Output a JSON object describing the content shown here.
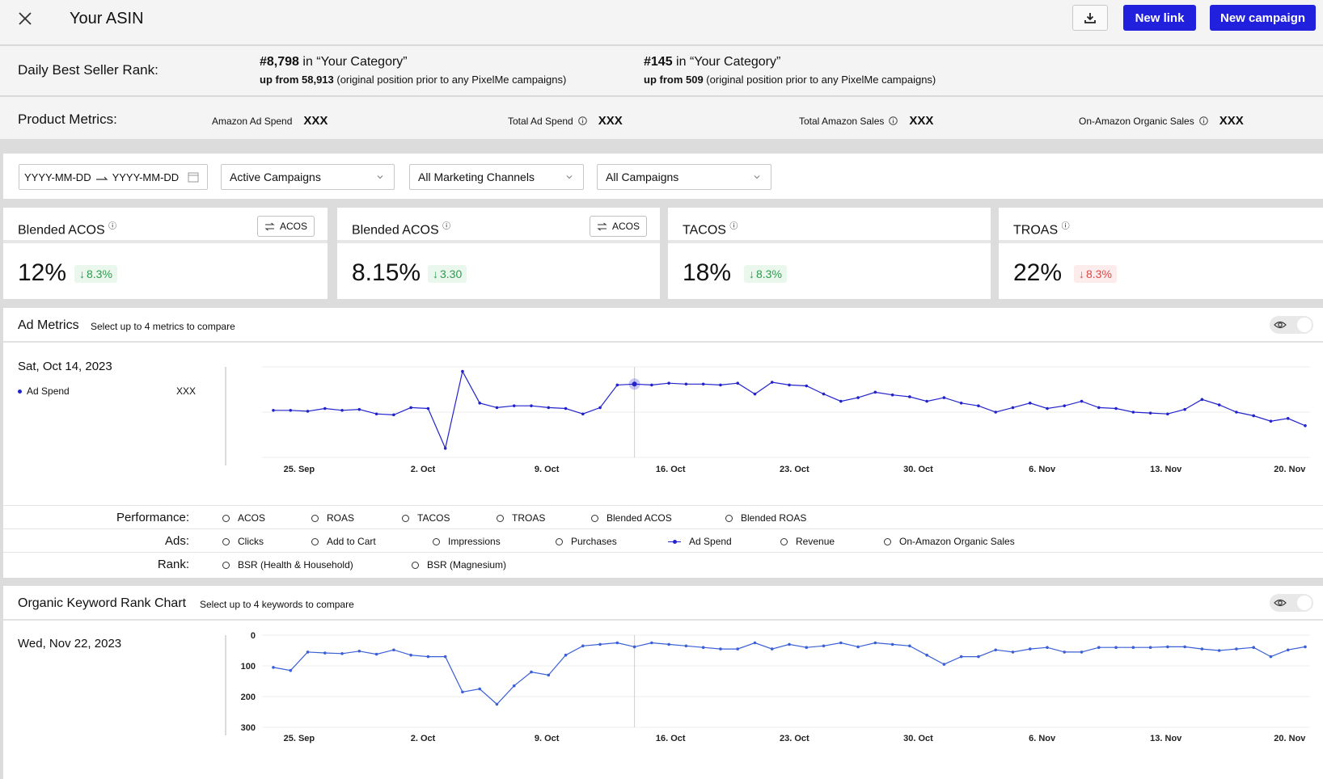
{
  "header": {
    "title": "Your ASIN",
    "new_link_label": "New link",
    "new_campaign_label": "New campaign"
  },
  "bsr": {
    "label": "Daily Best Seller Rank:",
    "items": [
      {
        "rank": "#8,798",
        "category": " in “Your Category”",
        "from": "up from 58,913",
        "note": " (original position prior to any PixelMe campaigns)"
      },
      {
        "rank": "#145",
        "category": " in “Your Category”",
        "from": "up from 509",
        "note": " (original position prior to any PixelMe campaigns)"
      }
    ]
  },
  "product_metrics": {
    "label": "Product Metrics:",
    "items": [
      {
        "label": "Amazon Ad Spend",
        "value": "XXX",
        "info": false
      },
      {
        "label": "Total Ad Spend",
        "value": "XXX",
        "info": true
      },
      {
        "label": "Total Amazon Sales",
        "value": "XXX",
        "info": true
      },
      {
        "label": "On-Amazon Organic Sales",
        "value": "XXX",
        "info": true
      }
    ]
  },
  "filters": {
    "date_start": "YYYY-MM-DD",
    "date_end": "YYYY-MM-DD",
    "campaign_status": "Active Campaigns",
    "channels": "All Marketing Channels",
    "campaigns": "All Campaigns"
  },
  "kpis": [
    {
      "title": "Blended ACOS",
      "toggle": "ACOS",
      "value": "12%",
      "change": "8.3%",
      "direction": "down",
      "good": true
    },
    {
      "title": "Blended ACOS",
      "toggle": "ACOS",
      "value": "8.15%",
      "change": "3.30",
      "direction": "down",
      "good": true
    },
    {
      "title": "TACOS",
      "toggle": "",
      "value": "18%",
      "change": "8.3%",
      "direction": "down",
      "good": true
    },
    {
      "title": "TROAS",
      "toggle": "",
      "value": "22%",
      "change": "8.3%",
      "direction": "down",
      "good": false
    }
  ],
  "ad_metrics": {
    "title": "Ad Metrics",
    "hint": "Select up to 4 metrics to compare",
    "tooltip_date": "Sat, Oct 14, 2023",
    "tooltip_series": "Ad Spend",
    "tooltip_value": "XXX",
    "rows": [
      {
        "label": "Performance:",
        "options": [
          "ACOS",
          "ROAS",
          "TACOS",
          "TROAS",
          "Blended ACOS",
          "Blended ROAS"
        ]
      },
      {
        "label": "Ads:",
        "options": [
          "Clicks",
          "Add to Cart",
          "Impressions",
          "Purchases",
          "Ad Spend",
          "Revenue",
          "On-Amazon Organic Sales"
        ],
        "selected": "Ad Spend"
      },
      {
        "label": "Rank:",
        "options": [
          "BSR (Health & Household)",
          "BSR (Magnesium)"
        ]
      }
    ]
  },
  "keyword_chart": {
    "title": "Organic Keyword Rank Chart",
    "hint": "Select up to 4 keywords to compare",
    "tooltip_date": "Wed, Nov 22, 2023"
  },
  "chart_data": [
    {
      "type": "line",
      "series": [
        {
          "name": "Ad Spend",
          "color": "#2323cc",
          "values": [
            0.52,
            0.52,
            0.51,
            0.54,
            0.52,
            0.53,
            0.48,
            0.47,
            0.55,
            0.54,
            0.1,
            0.95,
            0.6,
            0.55,
            0.57,
            0.57,
            0.55,
            0.54,
            0.48,
            0.55,
            0.8,
            0.81,
            0.8,
            0.82,
            0.81,
            0.81,
            0.8,
            0.82,
            0.7,
            0.83,
            0.8,
            0.79,
            0.7,
            0.62,
            0.66,
            0.72,
            0.69,
            0.67,
            0.62,
            0.66,
            0.6,
            0.57,
            0.5,
            0.55,
            0.6,
            0.54,
            0.57,
            0.62,
            0.55,
            0.54,
            0.5,
            0.49,
            0.48,
            0.53,
            0.64,
            0.58,
            0.5,
            0.46,
            0.4,
            0.43,
            0.35
          ]
        }
      ],
      "x_ticks": [
        "25. Sep",
        "2. Oct",
        "9. Oct",
        "16. Oct",
        "23. Oct",
        "30. Oct",
        "6. Nov",
        "13. Nov",
        "20. Nov"
      ],
      "highlight_index": 21,
      "grid": true
    },
    {
      "type": "line",
      "series": [
        {
          "name": "Organic Keyword Rank",
          "color": "#3a5fd6",
          "values": [
            105,
            115,
            55,
            58,
            60,
            52,
            62,
            48,
            65,
            70,
            70,
            185,
            175,
            225,
            165,
            120,
            130,
            65,
            35,
            30,
            25,
            38,
            25,
            30,
            35,
            40,
            45,
            45,
            25,
            45,
            30,
            40,
            35,
            25,
            38,
            25,
            30,
            35,
            65,
            95,
            70,
            70,
            48,
            55,
            45,
            40,
            55,
            55,
            40,
            40,
            40,
            40,
            38,
            38,
            45,
            50,
            45,
            40,
            70,
            48,
            38
          ]
        }
      ],
      "y_ticks": [
        0,
        100,
        200,
        300
      ],
      "ylim": [
        0,
        300
      ],
      "y_reversed": true,
      "x_ticks": [
        "25. Sep",
        "2. Oct",
        "9. Oct",
        "16. Oct",
        "23. Oct",
        "30. Oct",
        "6. Nov",
        "13. Nov",
        "20. Nov"
      ],
      "highlight_index": 21,
      "grid": true
    }
  ]
}
